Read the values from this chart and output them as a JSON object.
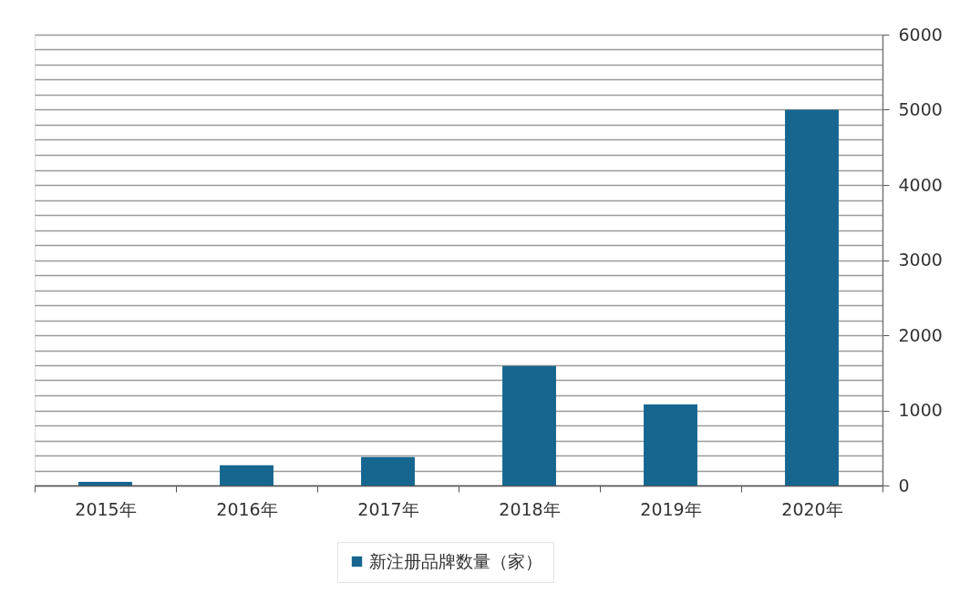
{
  "chart_data": {
    "type": "bar",
    "categories": [
      "2015年",
      "2016年",
      "2017年",
      "2018年",
      "2019年",
      "2020年"
    ],
    "series": [
      {
        "name": "新注册品牌数量（家）",
        "color": "#16668f",
        "values": [
          50,
          270,
          380,
          1590,
          1080,
          5000
        ]
      }
    ],
    "ylim": [
      0,
      6000
    ],
    "yticks": [
      0,
      {
        "value": 200,
        "label": null
      },
      {
        "value": 400,
        "label": null
      },
      {
        "value": 600,
        "label": null
      },
      {
        "value": 800,
        "label": null
      },
      1000,
      {
        "value": 1200,
        "label": null
      },
      {
        "value": 1400,
        "label": null
      },
      {
        "value": 1600,
        "label": null
      },
      {
        "value": 1800,
        "label": null
      },
      2000,
      {
        "value": 2200,
        "label": null
      },
      {
        "value": 2400,
        "label": null
      },
      {
        "value": 2600,
        "label": null
      },
      {
        "value": 2800,
        "label": null
      },
      3000,
      {
        "value": 3200,
        "label": null
      },
      {
        "value": 3400,
        "label": null
      },
      {
        "value": 3600,
        "label": null
      },
      {
        "value": 3800,
        "label": null
      },
      4000,
      {
        "value": 4200,
        "label": null
      },
      {
        "value": 4400,
        "label": null
      },
      {
        "value": 4600,
        "label": null
      },
      {
        "value": 4800,
        "label": null
      },
      5000,
      {
        "value": 5200,
        "label": null
      },
      {
        "value": 5400,
        "label": null
      },
      {
        "value": 5600,
        "label": null
      },
      {
        "value": 5800,
        "label": null
      },
      6000
    ],
    "grid": "y",
    "legend": "bottom"
  }
}
